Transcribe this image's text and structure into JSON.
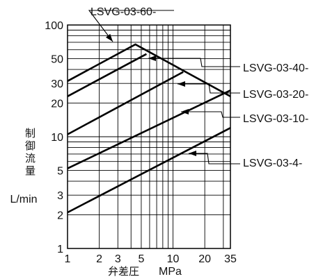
{
  "chart_data": {
    "type": "line",
    "xscale": "log",
    "yscale": "log",
    "xlim": [
      1,
      35
    ],
    "ylim": [
      1,
      100
    ],
    "xticks": [
      1,
      2,
      3,
      5,
      10,
      20,
      35
    ],
    "xtick_labels": [
      "1",
      "2",
      "3",
      "5",
      "10",
      "20",
      "35"
    ],
    "yticks": [
      1,
      2,
      3,
      5,
      10,
      20,
      30,
      50,
      100
    ],
    "ytick_labels": [
      "1",
      "2",
      "3",
      "5",
      "10",
      "20",
      "30",
      "50",
      "100"
    ],
    "ylabel_chars": [
      "制",
      "御",
      "流",
      "量"
    ],
    "ylabel_unit": "L/min",
    "xlabel_text": "弁差圧",
    "xlabel_unit": "MPa",
    "grid": true,
    "series": [
      {
        "name": "LSVG-03-60-",
        "x": [
          1,
          4.4,
          35
        ],
        "y": [
          31.5,
          67,
          23
        ]
      },
      {
        "name": "LSVG-03-40-",
        "x": [
          1,
          5.6
        ],
        "y": [
          23,
          55
        ]
      },
      {
        "name": "LSVG-03-20-",
        "x": [
          1,
          12.5
        ],
        "y": [
          10.5,
          38
        ]
      },
      {
        "name": "LSVG-03-10-",
        "x": [
          1,
          35
        ],
        "y": [
          5.2,
          26
        ]
      },
      {
        "name": "LSVG-03-4-",
        "x": [
          1,
          35
        ],
        "y": [
          2.1,
          12
        ]
      }
    ]
  }
}
